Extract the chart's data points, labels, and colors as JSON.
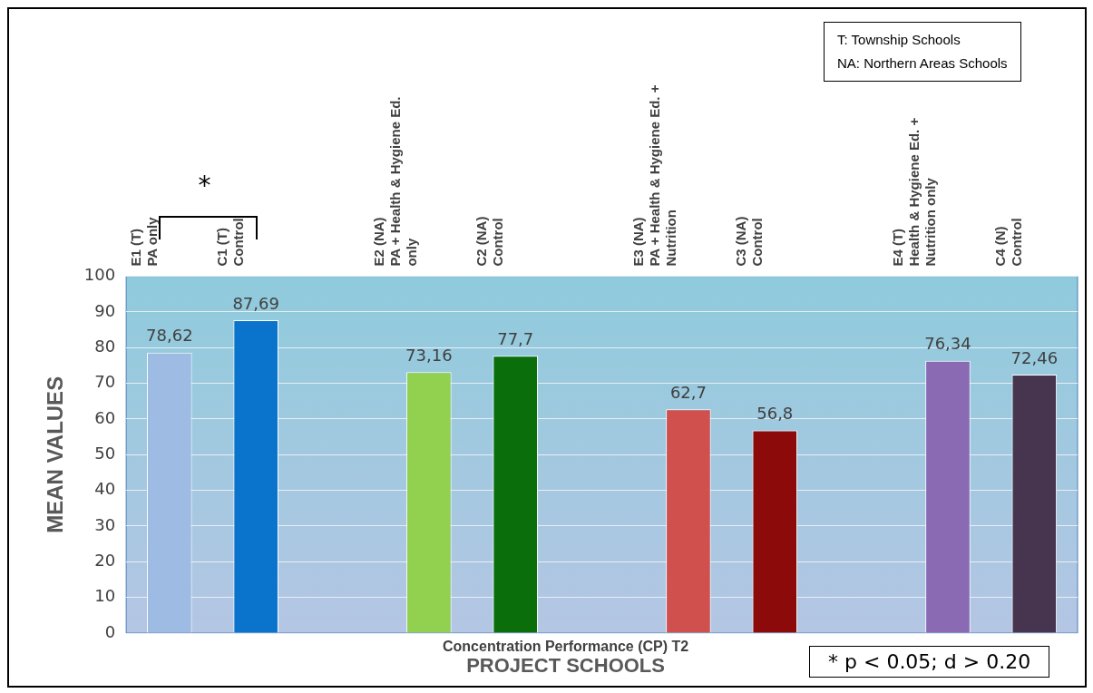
{
  "chart_data": {
    "type": "bar",
    "subtitle": "Concentration Performance (CP) T2",
    "xlabel": "PROJECT SCHOOLS",
    "ylabel": "MEAN VALUES",
    "categories": [
      "E1 (T)\nPA only",
      "C1 (T)\nControl",
      null,
      "E2 (NA)\nPA + Health & Hygiene Ed.\nonly",
      "C2 (NA)\nControl",
      null,
      "E3 (NA)\nPA + Health & Hygiene Ed. +\nNutrition",
      "C3 (NA)\nControl",
      null,
      "E4 (T)\nHealth & Hygiene Ed. +\nNutrition only",
      "C4 (N)\nControl"
    ],
    "values": [
      78.62,
      87.69,
      null,
      73.16,
      77.7,
      null,
      62.7,
      56.8,
      null,
      76.34,
      72.46
    ],
    "colors": [
      "#9dbbe3",
      "#0a74cc",
      null,
      "#92d050",
      "#0a6e0a",
      null,
      "#d0504e",
      "#8c0a0a",
      null,
      "#8a6ab3",
      "#47344f"
    ],
    "value_labels": [
      "78,62",
      "87,69",
      null,
      "73,16",
      "77,7",
      null,
      "62,7",
      "56,8",
      null,
      "76,34",
      "72,46"
    ],
    "ylim": [
      0,
      100
    ],
    "yticks": [
      0,
      10,
      20,
      30,
      40,
      50,
      60,
      70,
      80,
      90,
      100
    ],
    "grid": "y",
    "legend": false,
    "annotations": [
      "T: Township Schools\nNA: Northern Areas Schools",
      "* p < 0.05; d > 0.20",
      "*"
    ]
  }
}
